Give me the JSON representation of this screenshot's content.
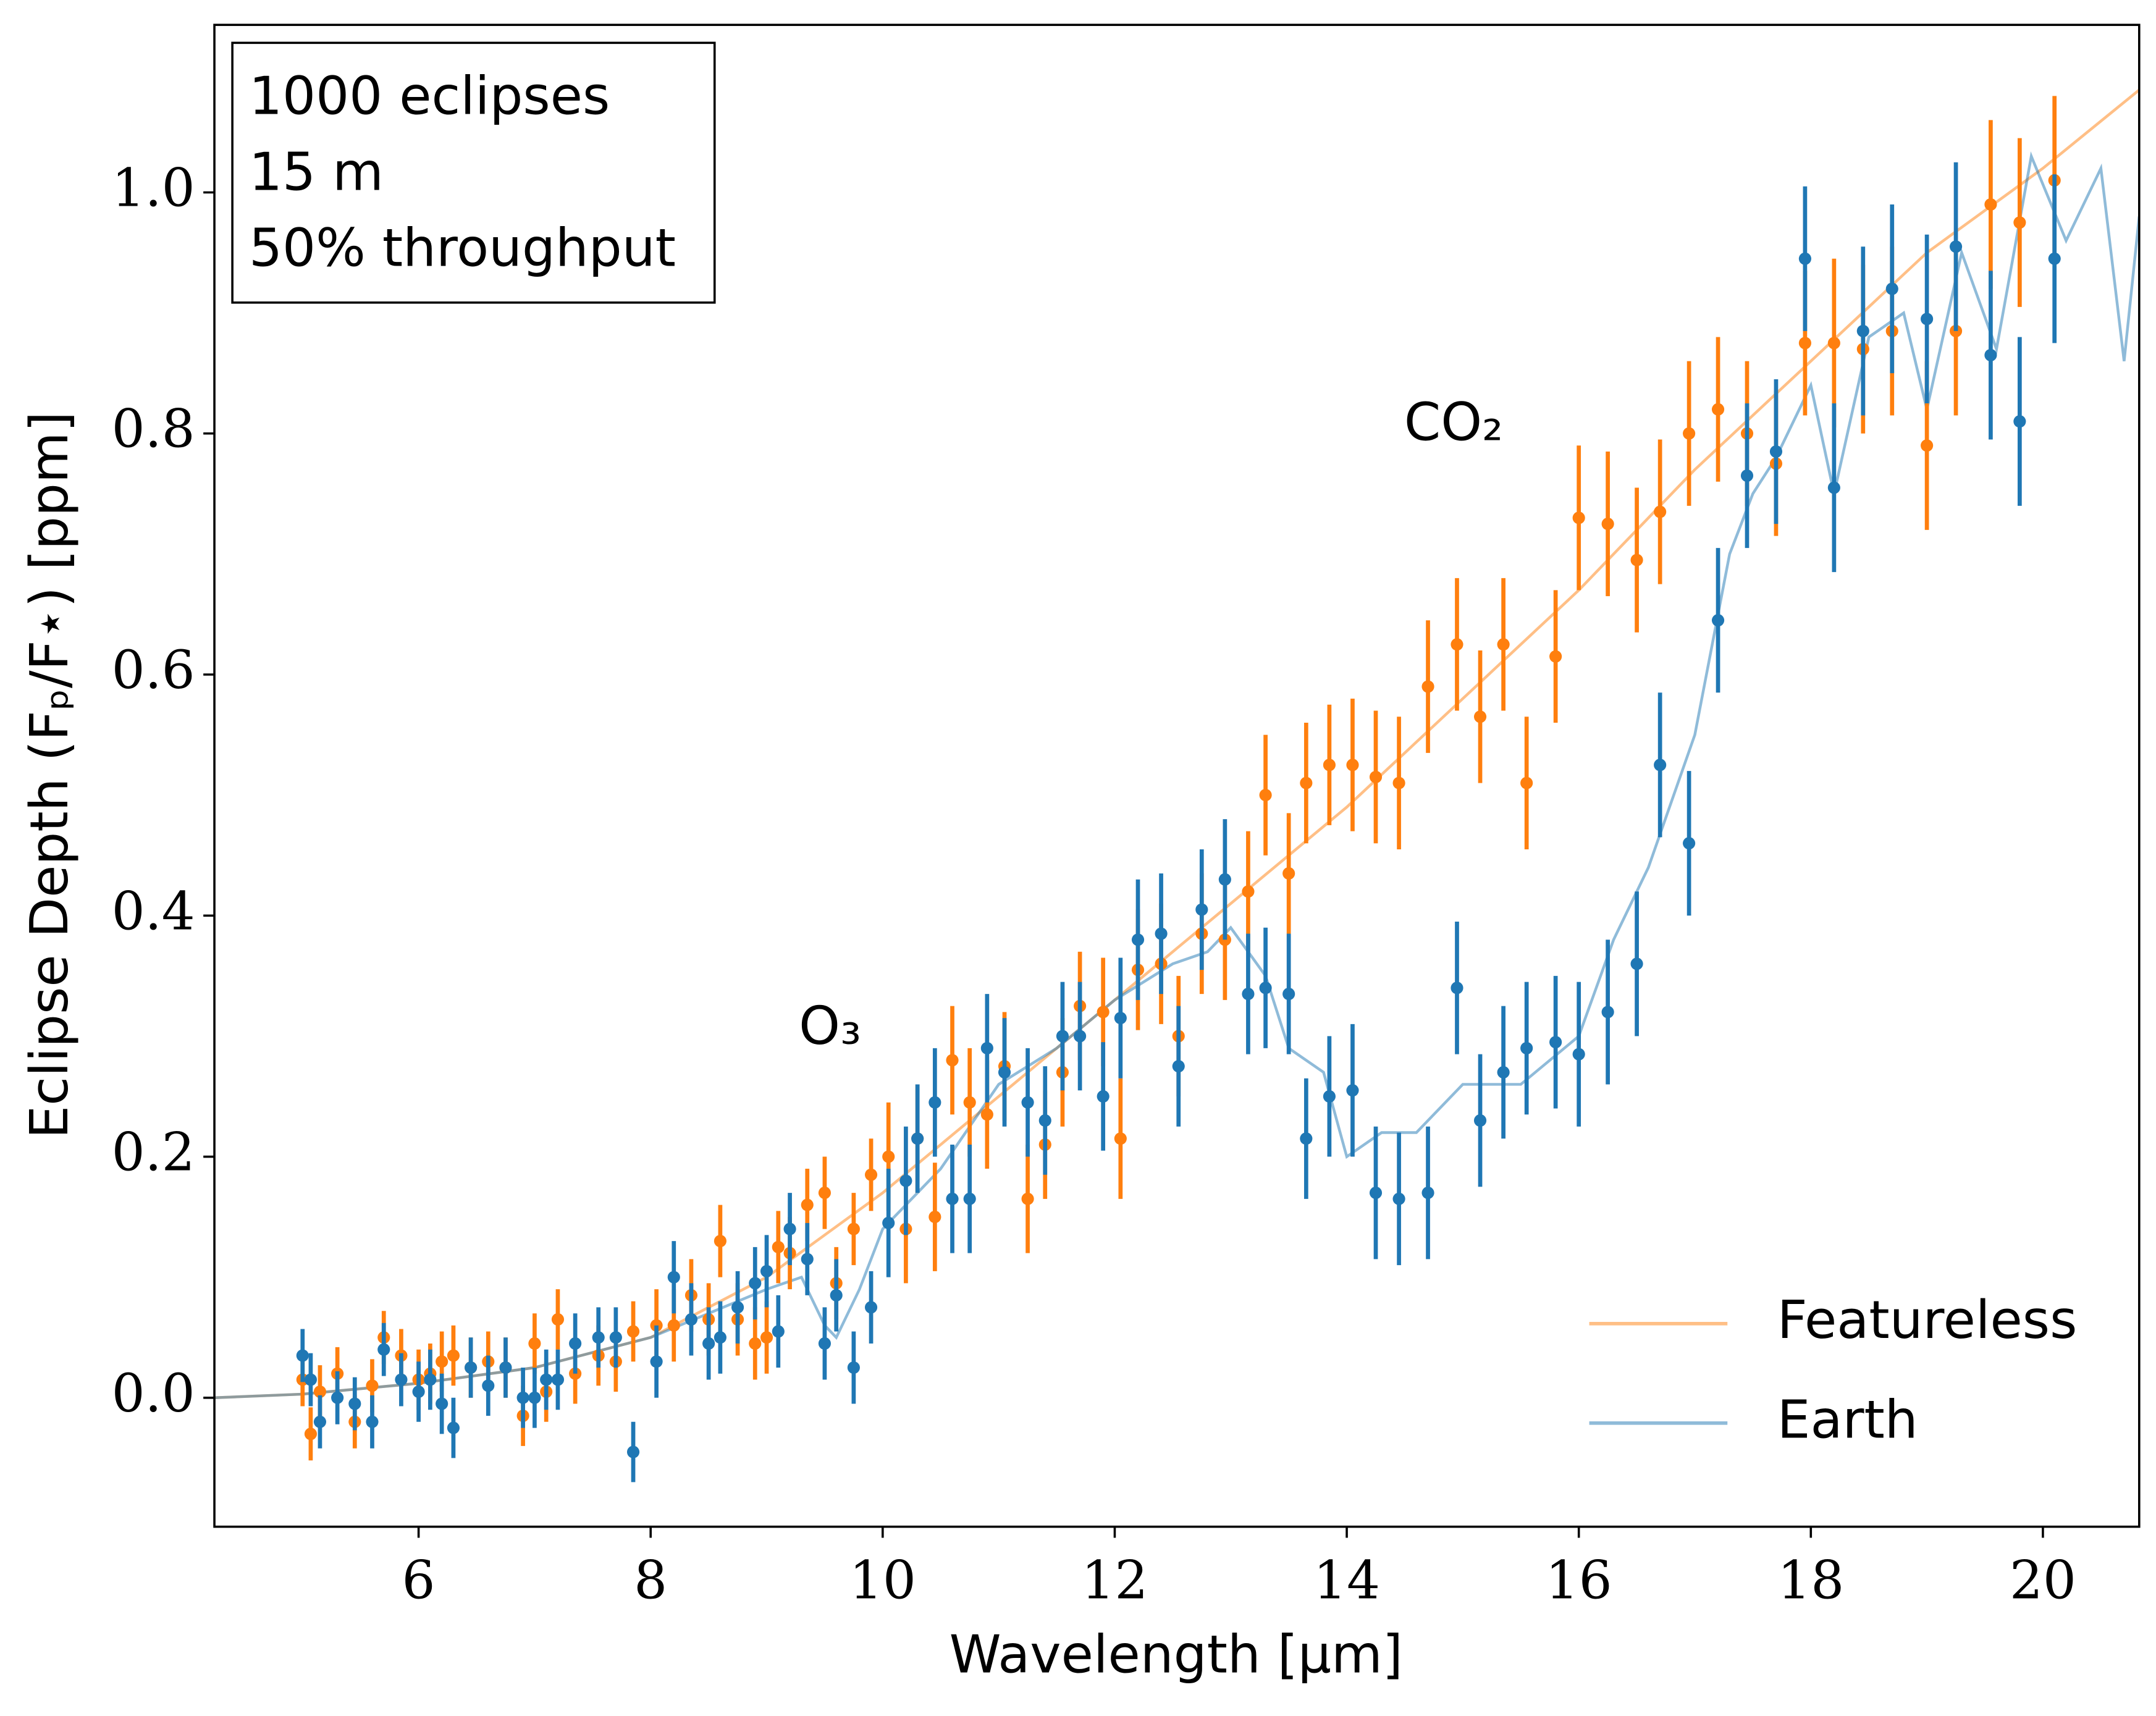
{
  "chart_data": {
    "type": "errorbar",
    "x_label": "Wavelength [μm]",
    "y_label": "Eclipse Depth (Fₚ/F⋆) [ppm]",
    "text_box": [
      "1000 eclipses",
      "15 m",
      "50% throughput"
    ],
    "annotations": [
      "O₃",
      "CO₂"
    ],
    "xlim": [
      4.24,
      20.83
    ],
    "ylim": [
      -0.107,
      1.139
    ],
    "xticks": [
      6,
      8,
      10,
      12,
      14,
      16,
      18,
      20
    ],
    "yticks": [
      {
        "value": 0,
        "label": "0.0"
      },
      0.2,
      0.4,
      0.6,
      0.8,
      {
        "value": 1,
        "label": "1.0"
      }
    ],
    "legend": "lower right",
    "series": [
      {
        "name": "Featureless",
        "color": "#ff7f0e",
        "line_x": [
          4.24,
          5,
          6,
          7,
          8,
          9,
          10,
          11,
          12,
          13,
          14,
          15,
          16,
          17,
          18,
          19,
          20,
          20.83
        ],
        "line_values": [
          0,
          0.003,
          0.012,
          0.025,
          0.05,
          0.1,
          0.17,
          0.25,
          0.33,
          0.41,
          0.49,
          0.58,
          0.67,
          0.77,
          0.86,
          0.95,
          1.02,
          1.085
        ],
        "x": [
          5.0,
          5.07,
          5.15,
          5.3,
          5.45,
          5.6,
          5.7,
          5.85,
          6.0,
          6.1,
          6.2,
          6.3,
          6.45,
          6.6,
          6.75,
          6.9,
          7.0,
          7.1,
          7.2,
          7.35,
          7.55,
          7.7,
          7.85,
          8.05,
          8.2,
          8.35,
          8.5,
          8.6,
          8.75,
          8.9,
          9.0,
          9.1,
          9.2,
          9.35,
          9.5,
          9.6,
          9.75,
          9.9,
          10.05,
          10.2,
          10.3,
          10.45,
          10.6,
          10.75,
          10.9,
          11.05,
          11.25,
          11.4,
          11.55,
          11.7,
          11.9,
          12.05,
          12.2,
          12.4,
          12.55,
          12.75,
          12.95,
          13.15,
          13.3,
          13.5,
          13.65,
          13.85,
          14.05,
          14.25,
          14.45,
          14.7,
          14.95,
          15.15,
          15.35,
          15.55,
          15.8,
          16.0,
          16.25,
          16.5,
          16.7,
          16.95,
          17.2,
          17.45,
          17.7,
          17.95,
          18.2,
          18.45,
          18.7,
          19.0,
          19.25,
          19.55,
          19.8,
          20.1
        ],
        "values": [
          0.015,
          -0.03,
          0.005,
          0.02,
          -0.02,
          0.01,
          0.05,
          0.035,
          0.015,
          0.02,
          0.03,
          0.035,
          0.025,
          0.03,
          0.025,
          -0.015,
          0.045,
          0.005,
          0.065,
          0.02,
          0.035,
          0.03,
          0.055,
          0.06,
          0.06,
          0.085,
          0.065,
          0.13,
          0.065,
          0.045,
          0.05,
          0.125,
          0.12,
          0.16,
          0.17,
          0.095,
          0.14,
          0.185,
          0.2,
          0.14,
          0.215,
          0.15,
          0.28,
          0.245,
          0.235,
          0.275,
          0.165,
          0.21,
          0.27,
          0.325,
          0.32,
          0.215,
          0.355,
          0.36,
          0.3,
          0.385,
          0.38,
          0.42,
          0.5,
          0.435,
          0.51,
          0.525,
          0.525,
          0.515,
          0.51,
          0.59,
          0.625,
          0.565,
          0.625,
          0.51,
          0.615,
          0.73,
          0.725,
          0.695,
          0.735,
          0.8,
          0.82,
          0.8,
          0.775,
          0.875,
          0.875,
          0.87,
          0.885,
          0.79,
          0.885,
          0.99,
          0.975,
          1.01
        ],
        "errors": [
          0.022,
          0.022,
          0.022,
          0.022,
          0.022,
          0.022,
          0.022,
          0.022,
          0.025,
          0.025,
          0.025,
          0.025,
          0.025,
          0.025,
          0.025,
          0.025,
          0.025,
          0.025,
          0.025,
          0.025,
          0.025,
          0.025,
          0.025,
          0.03,
          0.03,
          0.03,
          0.03,
          0.03,
          0.03,
          0.03,
          0.03,
          0.03,
          0.03,
          0.03,
          0.03,
          0.03,
          0.03,
          0.03,
          0.045,
          0.045,
          0.045,
          0.045,
          0.045,
          0.045,
          0.045,
          0.045,
          0.045,
          0.045,
          0.045,
          0.045,
          0.045,
          0.05,
          0.05,
          0.05,
          0.05,
          0.05,
          0.05,
          0.05,
          0.05,
          0.05,
          0.05,
          0.05,
          0.055,
          0.055,
          0.055,
          0.055,
          0.055,
          0.055,
          0.055,
          0.055,
          0.055,
          0.06,
          0.06,
          0.06,
          0.06,
          0.06,
          0.06,
          0.06,
          0.06,
          0.06,
          0.07,
          0.07,
          0.07,
          0.07,
          0.07,
          0.07,
          0.07,
          0.07
        ]
      },
      {
        "name": "Earth",
        "color": "#1f77b4",
        "line_x": [
          4.24,
          5,
          6,
          7,
          8,
          8.5,
          9,
          9.3,
          9.5,
          9.6,
          9.8,
          10,
          10.5,
          11,
          11.5,
          12,
          12.5,
          12.8,
          13,
          13.3,
          13.5,
          13.8,
          14,
          14.3,
          14.6,
          15,
          15.5,
          16,
          16.3,
          16.6,
          17,
          17.3,
          17.5,
          17.7,
          18,
          18.2,
          18.5,
          18.8,
          19,
          19.3,
          19.6,
          19.9,
          20.2,
          20.5,
          20.7,
          20.83
        ],
        "line_values": [
          0,
          0.003,
          0.012,
          0.025,
          0.05,
          0.07,
          0.09,
          0.1,
          0.06,
          0.05,
          0.09,
          0.14,
          0.19,
          0.26,
          0.29,
          0.33,
          0.36,
          0.37,
          0.39,
          0.35,
          0.29,
          0.27,
          0.2,
          0.22,
          0.22,
          0.26,
          0.26,
          0.3,
          0.38,
          0.44,
          0.55,
          0.7,
          0.75,
          0.78,
          0.84,
          0.75,
          0.88,
          0.9,
          0.82,
          0.95,
          0.87,
          1.03,
          0.96,
          1.02,
          0.86,
          0.98
        ],
        "x": [
          5.0,
          5.07,
          5.15,
          5.3,
          5.45,
          5.6,
          5.7,
          5.85,
          6.0,
          6.1,
          6.2,
          6.3,
          6.45,
          6.6,
          6.75,
          6.9,
          7.0,
          7.1,
          7.2,
          7.35,
          7.55,
          7.7,
          7.85,
          8.05,
          8.2,
          8.35,
          8.5,
          8.6,
          8.75,
          8.9,
          9.0,
          9.1,
          9.2,
          9.35,
          9.5,
          9.6,
          9.75,
          9.9,
          10.05,
          10.2,
          10.3,
          10.45,
          10.6,
          10.75,
          10.9,
          11.05,
          11.25,
          11.4,
          11.55,
          11.7,
          11.9,
          12.05,
          12.2,
          12.4,
          12.55,
          12.75,
          12.95,
          13.15,
          13.3,
          13.5,
          13.65,
          13.85,
          14.05,
          14.25,
          14.45,
          14.7,
          14.95,
          15.15,
          15.35,
          15.55,
          15.8,
          16.0,
          16.25,
          16.5,
          16.7,
          16.95,
          17.2,
          17.45,
          17.7,
          17.95,
          18.2,
          18.45,
          18.7,
          19.0,
          19.25,
          19.55,
          19.8,
          20.1
        ],
        "values": [
          0.035,
          0.015,
          -0.02,
          0.0,
          -0.005,
          -0.02,
          0.04,
          0.015,
          0.005,
          0.015,
          -0.005,
          -0.025,
          0.025,
          0.01,
          0.025,
          0.0,
          0.0,
          0.015,
          0.015,
          0.045,
          0.05,
          0.05,
          -0.045,
          0.03,
          0.1,
          0.065,
          0.045,
          0.05,
          0.075,
          0.095,
          0.105,
          0.055,
          0.14,
          0.115,
          0.045,
          0.085,
          0.025,
          0.075,
          0.145,
          0.18,
          0.215,
          0.245,
          0.165,
          0.165,
          0.29,
          0.27,
          0.245,
          0.23,
          0.3,
          0.3,
          0.25,
          0.315,
          0.38,
          0.385,
          0.275,
          0.405,
          0.43,
          0.335,
          0.34,
          0.335,
          0.215,
          0.25,
          0.255,
          0.17,
          0.165,
          0.17,
          0.34,
          0.23,
          0.27,
          0.29,
          0.295,
          0.285,
          0.32,
          0.36,
          0.525,
          0.46,
          0.645,
          0.765,
          0.785,
          0.945,
          0.755,
          0.885,
          0.92,
          0.895,
          0.955,
          0.865,
          0.81,
          0.945
        ],
        "errors": [
          0.022,
          0.022,
          0.022,
          0.022,
          0.022,
          0.022,
          0.022,
          0.022,
          0.025,
          0.025,
          0.025,
          0.025,
          0.025,
          0.025,
          0.025,
          0.025,
          0.025,
          0.025,
          0.025,
          0.025,
          0.025,
          0.025,
          0.025,
          0.03,
          0.03,
          0.03,
          0.03,
          0.03,
          0.03,
          0.03,
          0.03,
          0.03,
          0.03,
          0.03,
          0.03,
          0.03,
          0.03,
          0.03,
          0.045,
          0.045,
          0.045,
          0.045,
          0.045,
          0.045,
          0.045,
          0.045,
          0.045,
          0.045,
          0.045,
          0.045,
          0.045,
          0.05,
          0.05,
          0.05,
          0.05,
          0.05,
          0.05,
          0.05,
          0.05,
          0.05,
          0.05,
          0.05,
          0.055,
          0.055,
          0.055,
          0.055,
          0.055,
          0.055,
          0.055,
          0.055,
          0.055,
          0.06,
          0.06,
          0.06,
          0.06,
          0.06,
          0.06,
          0.06,
          0.06,
          0.06,
          0.07,
          0.07,
          0.07,
          0.07,
          0.07,
          0.07,
          0.07,
          0.07
        ]
      }
    ]
  }
}
